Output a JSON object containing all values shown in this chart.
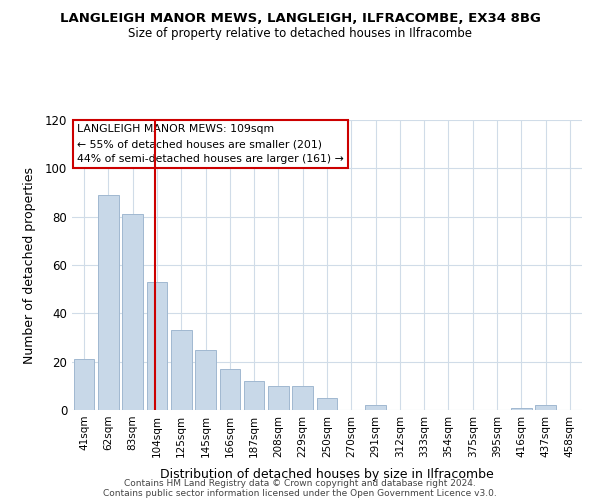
{
  "title": "LANGLEIGH MANOR MEWS, LANGLEIGH, ILFRACOMBE, EX34 8BG",
  "subtitle": "Size of property relative to detached houses in Ilfracombe",
  "xlabel": "Distribution of detached houses by size in Ilfracombe",
  "ylabel": "Number of detached properties",
  "categories": [
    "41sqm",
    "62sqm",
    "83sqm",
    "104sqm",
    "125sqm",
    "145sqm",
    "166sqm",
    "187sqm",
    "208sqm",
    "229sqm",
    "250sqm",
    "270sqm",
    "291sqm",
    "312sqm",
    "333sqm",
    "354sqm",
    "375sqm",
    "395sqm",
    "416sqm",
    "437sqm",
    "458sqm"
  ],
  "values": [
    21,
    89,
    81,
    53,
    33,
    25,
    17,
    12,
    10,
    10,
    5,
    0,
    2,
    0,
    0,
    0,
    0,
    0,
    1,
    2,
    0
  ],
  "bar_color": "#c8d8e8",
  "bar_edge_color": "#a0b8d0",
  "highlight_line_color": "#cc0000",
  "annotation_box_edge_color": "#cc0000",
  "annotation_line1": "LANGLEIGH MANOR MEWS: 109sqm",
  "annotation_line2": "← 55% of detached houses are smaller (201)",
  "annotation_line3": "44% of semi-detached houses are larger (161) →",
  "ylim": [
    0,
    120
  ],
  "yticks": [
    0,
    20,
    40,
    60,
    80,
    100,
    120
  ],
  "footer_line1": "Contains HM Land Registry data © Crown copyright and database right 2024.",
  "footer_line2": "Contains public sector information licensed under the Open Government Licence v3.0.",
  "background_color": "#ffffff",
  "grid_color": "#d0dce8"
}
